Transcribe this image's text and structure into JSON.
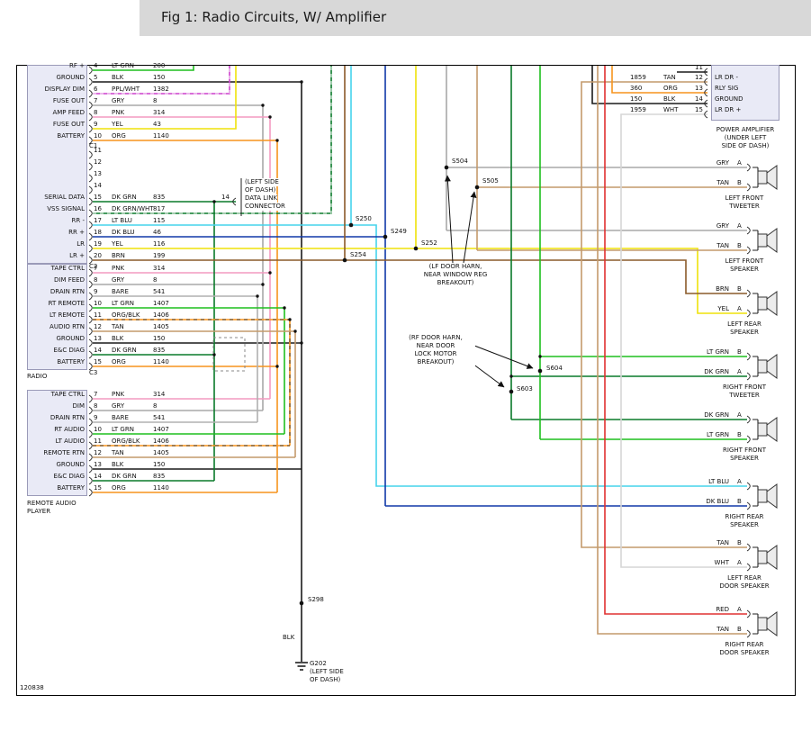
{
  "header": {
    "title": "Fig 1: Radio Circuits, W/ Amplifier"
  },
  "doc_number": "120838",
  "colors": {
    "LT GRN": "#1fbf1f",
    "BLK": "#1a1a1a",
    "PPL/WHT": "#cc3fcc",
    "GRY": "#a8a8a8",
    "PNK": "#f49ac1",
    "YEL": "#efe20a",
    "ORG": "#f7941d",
    "DK GRN": "#0a7a2a",
    "DK GRN/WHT": "#0a7a2a",
    "LT BLU": "#45d4ec",
    "DK BLU": "#1038a8",
    "BRN": "#8a5a2a",
    "TAN": "#c49a6c",
    "BARE": "#b0b0b0",
    "ORG/BLK": "#f7941d",
    "WHT": "#d6d6d6",
    "RED": "#e03030"
  },
  "radio": {
    "label": "RADIO",
    "connector_markers": [
      "C1",
      "C2",
      "C3"
    ],
    "c1_rows": [
      {
        "label": "RF +",
        "pin": "4",
        "color": "LT GRN",
        "circuit": "200"
      },
      {
        "label": "GROUND",
        "pin": "5",
        "color": "BLK",
        "circuit": "150"
      },
      {
        "label": "DISPLAY DIM",
        "pin": "6",
        "color": "PPL/WHT",
        "circuit": "1382"
      },
      {
        "label": "FUSE OUT",
        "pin": "7",
        "color": "GRY",
        "circuit": "8"
      },
      {
        "label": "AMP FEED",
        "pin": "8",
        "color": "PNK",
        "circuit": "314"
      },
      {
        "label": "FUSE OUT",
        "pin": "9",
        "color": "YEL",
        "circuit": "43"
      },
      {
        "label": "BATTERY",
        "pin": "10",
        "color": "ORG",
        "circuit": "1140"
      },
      {
        "label": "",
        "pin": "11",
        "color": "",
        "circuit": ""
      },
      {
        "label": "",
        "pin": "12",
        "color": "",
        "circuit": ""
      },
      {
        "label": "",
        "pin": "13",
        "color": "",
        "circuit": ""
      },
      {
        "label": "",
        "pin": "14",
        "color": "",
        "circuit": ""
      },
      {
        "label": "SERIAL DATA",
        "pin": "15",
        "color": "DK GRN",
        "circuit": "835"
      },
      {
        "label": "VSS SIGNAL",
        "pin": "16",
        "color": "DK GRN/WHT",
        "circuit": "817"
      },
      {
        "label": "RR -",
        "pin": "17",
        "color": "LT BLU",
        "circuit": "115"
      },
      {
        "label": "RR +",
        "pin": "18",
        "color": "DK BLU",
        "circuit": "46"
      },
      {
        "label": "LR",
        "pin": "19",
        "color": "YEL",
        "circuit": "116"
      },
      {
        "label": "LR +",
        "pin": "20",
        "color": "BRN",
        "circuit": "199"
      }
    ],
    "c2_rows": [
      {
        "label": "TAPE CTRL",
        "pin": "7",
        "color": "PNK",
        "circuit": "314"
      },
      {
        "label": "DIM FEED",
        "pin": "8",
        "color": "GRY",
        "circuit": "8"
      },
      {
        "label": "DRAIN RTN",
        "pin": "9",
        "color": "BARE",
        "circuit": "541"
      },
      {
        "label": "RT REMOTE",
        "pin": "10",
        "color": "LT GRN",
        "circuit": "1407"
      },
      {
        "label": "LT REMOTE",
        "pin": "11",
        "color": "ORG/BLK",
        "circuit": "1406"
      },
      {
        "label": "AUDIO RTN",
        "pin": "12",
        "color": "TAN",
        "circuit": "1405"
      },
      {
        "label": "GROUND",
        "pin": "13",
        "color": "BLK",
        "circuit": "150"
      },
      {
        "label": "E&C DIAG",
        "pin": "14",
        "color": "DK GRN",
        "circuit": "835"
      },
      {
        "label": "BATTERY",
        "pin": "15",
        "color": "ORG",
        "circuit": "1140"
      }
    ]
  },
  "remote_player": {
    "label_lines": [
      "REMOTE AUDIO",
      "PLAYER"
    ],
    "rows": [
      {
        "label": "TAPE CTRL",
        "pin": "7",
        "color": "PNK",
        "circuit": "314"
      },
      {
        "label": "DIM",
        "pin": "8",
        "color": "GRY",
        "circuit": "8"
      },
      {
        "label": "DRAIN RTN",
        "pin": "9",
        "color": "BARE",
        "circuit": "541"
      },
      {
        "label": "RT AUDIO",
        "pin": "10",
        "color": "LT GRN",
        "circuit": "1407"
      },
      {
        "label": "LT AUDIO",
        "pin": "11",
        "color": "ORG/BLK",
        "circuit": "1406"
      },
      {
        "label": "REMOTE RTN",
        "pin": "12",
        "color": "TAN",
        "circuit": "1405"
      },
      {
        "label": "GROUND",
        "pin": "13",
        "color": "BLK",
        "circuit": "150"
      },
      {
        "label": "E&C DIAG",
        "pin": "14",
        "color": "DK GRN",
        "circuit": "835"
      },
      {
        "label": "BATTERY",
        "pin": "15",
        "color": "ORG",
        "circuit": "1140"
      }
    ]
  },
  "dlc": {
    "pin": "14",
    "lines": [
      "(LEFT SIDE",
      "OF DASH)",
      "DATA LINK",
      "CONNECTOR"
    ]
  },
  "amplifier": {
    "rows": [
      {
        "circuit": "",
        "color": "",
        "pin": "11",
        "label": ""
      },
      {
        "circuit": "1859",
        "color": "TAN",
        "pin": "12",
        "label": "LR DR -"
      },
      {
        "circuit": "360",
        "color": "ORG",
        "pin": "13",
        "label": "RLY SIG"
      },
      {
        "circuit": "150",
        "color": "BLK",
        "pin": "14",
        "label": "GROUND"
      },
      {
        "circuit": "1959",
        "color": "WHT",
        "pin": "15",
        "label": "LR DR +"
      }
    ],
    "title_lines": [
      "POWER AMPLIFIER",
      "(UNDER LEFT",
      "SIDE OF DASH)"
    ]
  },
  "speakers": [
    {
      "name_lines": [
        "LEFT FRONT",
        "TWEETER"
      ],
      "wires": [
        {
          "color": "GRY",
          "pin": "A"
        },
        {
          "color": "TAN",
          "pin": "B"
        }
      ]
    },
    {
      "name_lines": [
        "LEFT FRONT",
        "SPEAKER"
      ],
      "wires": [
        {
          "color": "GRY",
          "pin": "A"
        },
        {
          "color": "TAN",
          "pin": "B"
        }
      ]
    },
    {
      "name_lines": [
        "LEFT REAR",
        "SPEAKER"
      ],
      "wires": [
        {
          "color": "BRN",
          "pin": "B"
        },
        {
          "color": "YEL",
          "pin": "A"
        }
      ]
    },
    {
      "name_lines": [
        "RIGHT FRONT",
        "TWEETER"
      ],
      "wires": [
        {
          "color": "LT GRN",
          "pin": "B"
        },
        {
          "color": "DK GRN",
          "pin": "A"
        }
      ]
    },
    {
      "name_lines": [
        "RIGHT FRONT",
        "SPEAKER"
      ],
      "wires": [
        {
          "color": "DK GRN",
          "pin": "A"
        },
        {
          "color": "LT GRN",
          "pin": "B"
        }
      ]
    },
    {
      "name_lines": [
        "RIGHT REAR",
        "SPEAKER"
      ],
      "wires": [
        {
          "color": "LT BLU",
          "pin": "A"
        },
        {
          "color": "DK BLU",
          "pin": "B"
        }
      ]
    },
    {
      "name_lines": [
        "LEFT REAR",
        "DOOR SPEAKER"
      ],
      "wires": [
        {
          "color": "TAN",
          "pin": "B"
        },
        {
          "color": "WHT",
          "pin": "A"
        }
      ]
    },
    {
      "name_lines": [
        "RIGHT REAR",
        "DOOR SPEAKER"
      ],
      "wires": [
        {
          "color": "RED",
          "pin": "A"
        },
        {
          "color": "TAN",
          "pin": "B"
        }
      ]
    }
  ],
  "splices": [
    "S250",
    "S249",
    "S252",
    "S254",
    "S504",
    "S505",
    "S604",
    "S603",
    "S298"
  ],
  "notes": [
    {
      "lines": [
        "(LF DOOR HARN,",
        "NEAR WINDOW REG",
        "BREAKOUT)"
      ]
    },
    {
      "lines": [
        "(RF DOOR HARN,",
        "NEAR DOOR",
        "LOCK MOTOR",
        "BREAKOUT)"
      ]
    }
  ],
  "ground": {
    "wire_label": "BLK",
    "label_lines": [
      "G202",
      "(LEFT SIDE",
      "OF DASH)"
    ]
  }
}
